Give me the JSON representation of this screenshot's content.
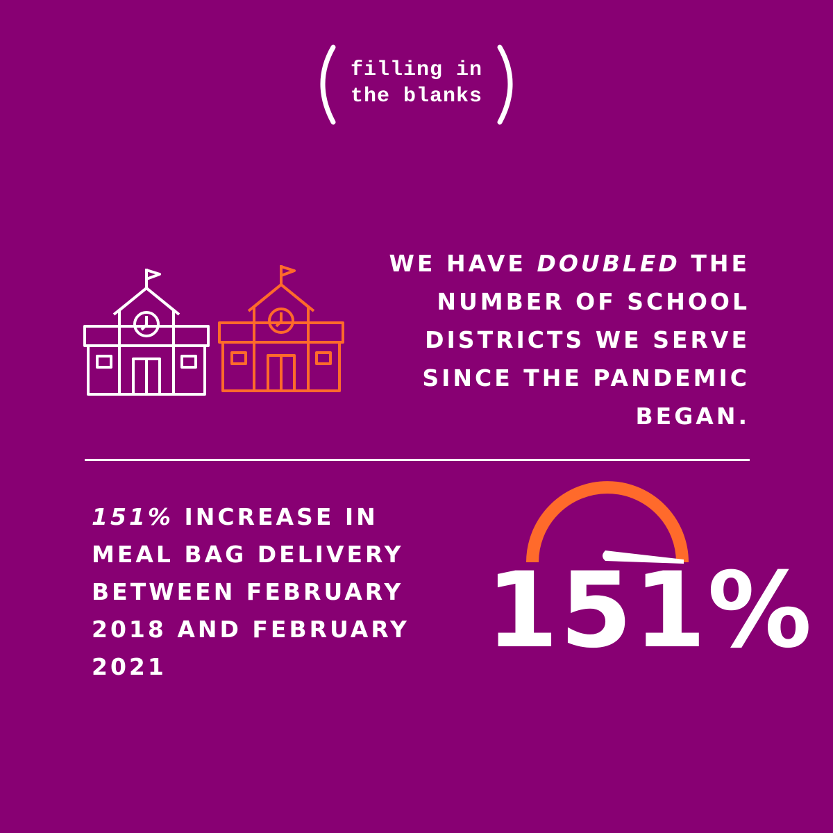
{
  "logo": {
    "lines": [
      "filling in",
      "the blanks"
    ]
  },
  "stat_1": {
    "first_line": {
      "before": "WE HAVE",
      "emphasis": "DOUBLED",
      "after": "THE"
    },
    "lines": [
      "NUMBER OF SCHOOL",
      "DISTRICTS WE SERVE",
      "SINCE THE PANDEMIC",
      "BEGAN."
    ]
  },
  "stat_2": {
    "first_line": {
      "emphasis": "151%",
      "after": "INCREASE IN"
    },
    "lines": [
      "MEAL BAG DELIVERY",
      "BETWEEN FEBRUARY",
      "2018 AND FEBRUARY",
      "2021"
    ],
    "figure": "151%"
  }
}
